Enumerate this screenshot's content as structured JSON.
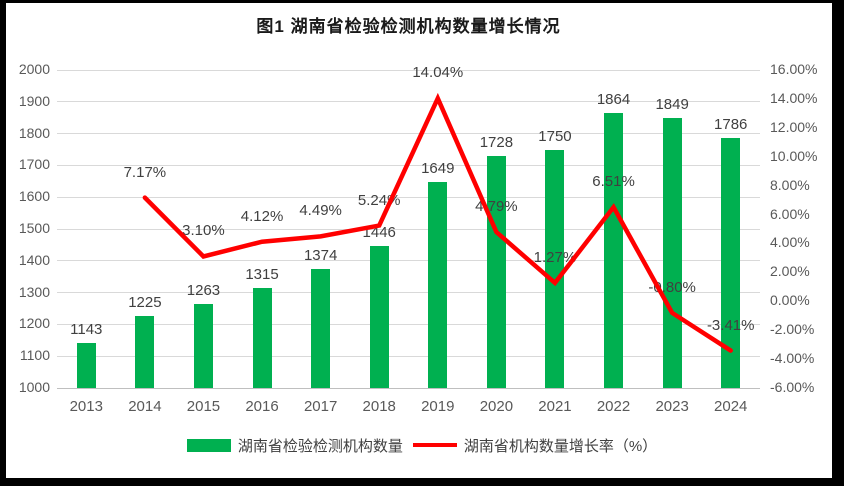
{
  "chart_data": {
    "type": "combo",
    "title": "图1 湖南省检验检测机构数量增长情况",
    "categories": [
      "2013",
      "2014",
      "2015",
      "2016",
      "2017",
      "2018",
      "2019",
      "2020",
      "2021",
      "2022",
      "2023",
      "2024"
    ],
    "series": [
      {
        "name": "湖南省检验检测机构数量",
        "type": "bar",
        "axis": "left",
        "color": "#00B050",
        "values": [
          1143,
          1225,
          1263,
          1315,
          1374,
          1446,
          1649,
          1728,
          1750,
          1864,
          1849,
          1786
        ],
        "value_labels": [
          "1143",
          "1225",
          "1263",
          "1315",
          "1374",
          "1446",
          "1649",
          "1728",
          "1750",
          "1864",
          "1849",
          "1786"
        ]
      },
      {
        "name": "湖南省机构数量增长率（%）",
        "type": "line",
        "axis": "right",
        "color": "#FF0000",
        "values": [
          null,
          7.17,
          3.1,
          4.12,
          4.49,
          5.24,
          14.04,
          4.79,
          1.27,
          6.51,
          -0.8,
          -3.41
        ],
        "point_labels": [
          "",
          "7.17%",
          "3.10%",
          "4.12%",
          "4.49%",
          "5.24%",
          "14.04%",
          "4.79%",
          "1.27%",
          "6.51%",
          "-0.80%",
          "-3.41%"
        ]
      }
    ],
    "left_axis": {
      "min": 1000,
      "max": 2000,
      "step": 100,
      "ticks": [
        "2000",
        "1900",
        "1800",
        "1700",
        "1600",
        "1500",
        "1400",
        "1300",
        "1200",
        "1100",
        "1000"
      ]
    },
    "right_axis": {
      "min": -6,
      "max": 16,
      "step": 2,
      "ticks": [
        "16.00%",
        "14.00%",
        "12.00%",
        "10.00%",
        "8.00%",
        "6.00%",
        "4.00%",
        "2.00%",
        "0.00%",
        "-2.00%",
        "-4.00%",
        "-6.00%"
      ]
    },
    "grid": true,
    "legend_position": "bottom",
    "colors": {
      "grid": "#D9D9D9",
      "axis_line": "#BFBFBF",
      "tick_text": "#595959",
      "data_label": "#404040"
    }
  }
}
